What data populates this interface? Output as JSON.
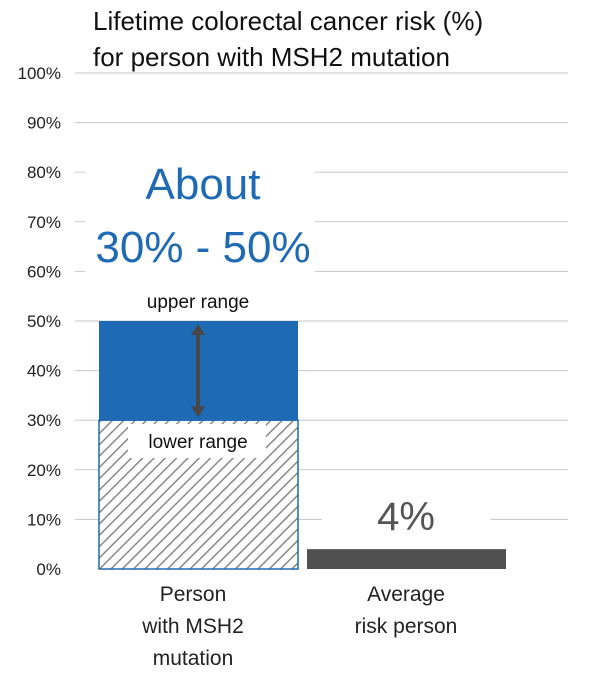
{
  "chart_data": {
    "type": "bar",
    "title_lines": [
      "Lifetime colorectal cancer risk (%)",
      "for person with MSH2 mutation"
    ],
    "yaxis": {
      "ticks": [
        "0%",
        "10%",
        "20%",
        "30%",
        "40%",
        "50%",
        "60%",
        "70%",
        "80%",
        "90%",
        "100%"
      ],
      "ylim": [
        0,
        100
      ]
    },
    "grid": true,
    "categories": [
      {
        "lines": [
          "Person",
          "with MSH2",
          "mutation"
        ]
      },
      {
        "lines": [
          "Average",
          "risk person"
        ]
      }
    ],
    "bars": [
      {
        "category_index": 0,
        "lower": 30,
        "upper": 50
      },
      {
        "category_index": 1,
        "value": 4
      }
    ],
    "annotations": {
      "headline_lines": [
        "About",
        "30% - 50%"
      ],
      "upper_label": "upper range",
      "lower_label": "lower range",
      "average_label": "4%"
    },
    "colors": {
      "range_fill": "#1F6AB4",
      "hatch": "#888888",
      "average_bar": "#505050",
      "headline": "#1F6AB4",
      "arrow": "#474747",
      "grid": "#c8c8c8",
      "average_label": "#555555"
    }
  }
}
